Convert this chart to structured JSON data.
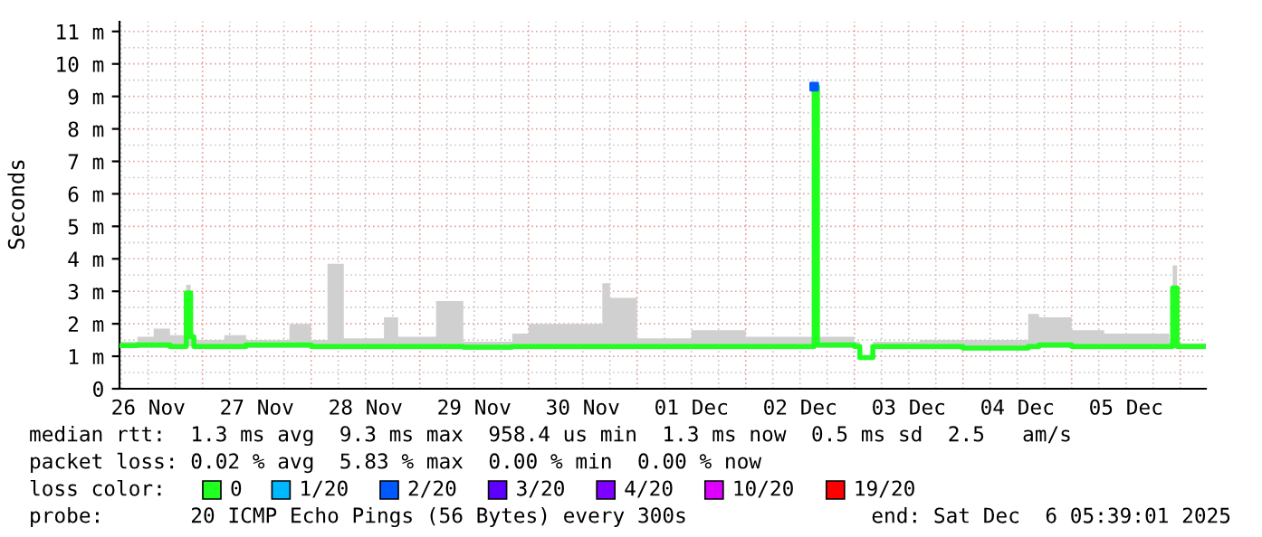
{
  "chart_data": {
    "type": "step",
    "ylabel": "Seconds",
    "legend_title": "loss color:",
    "legend": "bottom",
    "grid": true,
    "xlim": [
      "2025-11-26T05:39",
      "2025-12-06T05:39"
    ],
    "xticks": [
      {
        "value": "2025-11-26T12:00",
        "label": "26 Nov"
      },
      {
        "value": "2025-11-27T12:00",
        "label": "27 Nov"
      },
      {
        "value": "2025-11-28T12:00",
        "label": "28 Nov"
      },
      {
        "value": "2025-11-29T12:00",
        "label": "29 Nov"
      },
      {
        "value": "2025-11-30T12:00",
        "label": "30 Nov"
      },
      {
        "value": "2025-12-01T12:00",
        "label": "01 Dec"
      },
      {
        "value": "2025-12-02T12:00",
        "label": "02 Dec"
      },
      {
        "value": "2025-12-03T12:00",
        "label": "03 Dec"
      },
      {
        "value": "2025-12-04T12:00",
        "label": "04 Dec"
      },
      {
        "value": "2025-12-05T12:00",
        "label": "05 Dec"
      }
    ],
    "ylim": [
      0,
      11.3
    ],
    "yticks": [
      0,
      {
        "value": 1,
        "label": "1 m"
      },
      {
        "value": 2,
        "label": "2 m"
      },
      {
        "value": 3,
        "label": "3 m"
      },
      {
        "value": 4,
        "label": "4 m"
      },
      {
        "value": 5,
        "label": "5 m"
      },
      {
        "value": 6,
        "label": "6 m"
      },
      {
        "value": 7,
        "label": "7 m"
      },
      {
        "value": 8,
        "label": "8 m"
      },
      {
        "value": 9,
        "label": "9 m"
      },
      {
        "value": 10,
        "label": "10 m"
      },
      {
        "value": 11,
        "label": "11 m"
      }
    ],
    "series": [
      {
        "name": "0",
        "color": "#20ff20",
        "x": [
          "2025-11-26T05:39",
          "2025-11-26T09:36",
          "2025-11-26T13:12",
          "2025-11-26T16:48",
          "2025-11-26T19:55",
          "2025-11-26T20:24",
          "2025-11-26T20:53",
          "2025-11-26T21:22",
          "2025-11-26T22:05",
          "2025-11-27T04:48",
          "2025-11-27T09:36",
          "2025-11-27T19:12",
          "2025-11-28T00:00",
          "2025-11-28T03:36",
          "2025-11-28T07:12",
          "2025-11-28T16:05",
          "2025-11-28T19:12",
          "2025-11-29T03:36",
          "2025-11-29T09:36",
          "2025-11-29T20:24",
          "2025-11-30T00:00",
          "2025-11-30T16:19",
          "2025-11-30T18:00",
          "2025-12-01T00:00",
          "2025-12-01T12:00",
          "2025-12-02T00:00",
          "2025-12-02T14:24",
          "2025-12-02T15:07",
          "2025-12-02T15:50",
          "2025-12-03T00:00",
          "2025-12-03T01:12",
          "2025-12-03T03:36",
          "2025-12-03T04:05",
          "2025-12-03T14:24",
          "2025-12-04T00:00",
          "2025-12-04T14:24",
          "2025-12-04T16:48",
          "2025-12-05T00:00",
          "2025-12-05T07:12",
          "2025-12-05T21:36",
          "2025-12-05T22:19",
          "2025-12-05T22:48",
          "2025-12-05T23:17",
          "2025-12-06T05:39"
        ],
        "values": [
          1.33,
          1.35,
          1.35,
          1.3,
          1.3,
          2.95,
          2.95,
          1.6,
          1.3,
          1.3,
          1.35,
          1.35,
          1.3,
          1.3,
          1.3,
          1.3,
          1.3,
          1.3,
          1.28,
          1.3,
          1.3,
          1.3,
          1.3,
          1.3,
          1.3,
          1.3,
          1.3,
          9.3,
          1.35,
          1.3,
          0.96,
          0.96,
          1.3,
          1.3,
          1.25,
          1.3,
          1.35,
          1.3,
          1.3,
          1.3,
          3.1,
          3.1,
          1.3,
          1.3
        ],
        "lower": [
          1.25,
          1.25,
          1.25,
          1.22,
          1.22,
          1.3,
          1.3,
          1.3,
          1.22,
          1.22,
          1.25,
          1.25,
          1.22,
          1.22,
          1.22,
          1.22,
          1.22,
          1.22,
          1.2,
          1.22,
          1.22,
          1.22,
          1.22,
          1.22,
          1.22,
          1.22,
          1.22,
          1.3,
          1.25,
          1.22,
          0.9,
          0.9,
          1.22,
          1.22,
          1.18,
          1.22,
          1.25,
          1.22,
          1.22,
          1.22,
          1.3,
          1.3,
          1.22,
          1.22
        ],
        "upper": [
          1.45,
          1.6,
          1.85,
          1.65,
          1.4,
          3.2,
          3.2,
          1.7,
          1.5,
          1.65,
          1.5,
          2.0,
          1.5,
          3.85,
          1.55,
          2.2,
          1.6,
          2.7,
          1.45,
          1.7,
          2.0,
          3.25,
          2.8,
          1.55,
          1.8,
          1.6,
          1.6,
          9.3,
          1.6,
          1.45,
          1.0,
          1.0,
          1.45,
          1.5,
          1.5,
          2.3,
          2.2,
          1.8,
          1.7,
          1.45,
          3.8,
          3.8,
          1.4,
          1.4
        ]
      },
      {
        "name": "1/20",
        "color": "#00b8ff"
      },
      {
        "name": "2/20",
        "color": "#0059ff",
        "type": "scatter",
        "x": [
          "2025-12-02T15:07"
        ],
        "values": [
          9.3
        ]
      },
      {
        "name": "3/20",
        "color": "#5e00ff"
      },
      {
        "name": "4/20",
        "color": "#7e00ff"
      },
      {
        "name": "10/20",
        "color": "#dd00ff"
      },
      {
        "name": "19/20",
        "color": "#ff0000"
      }
    ],
    "annotations": [
      "median rtt:  1.3 ms avg  9.3 ms max  958.4 us min  1.3 ms now  0.5 ms sd  2.5   am/s",
      "packet loss: 0.02 % avg  5.83 % max  0.00 % min  0.00 % now",
      "probe:       20 ICMP Echo Pings (56 Bytes) every 300s",
      "end: Sat Dec  6 05:39:01 2025"
    ]
  }
}
